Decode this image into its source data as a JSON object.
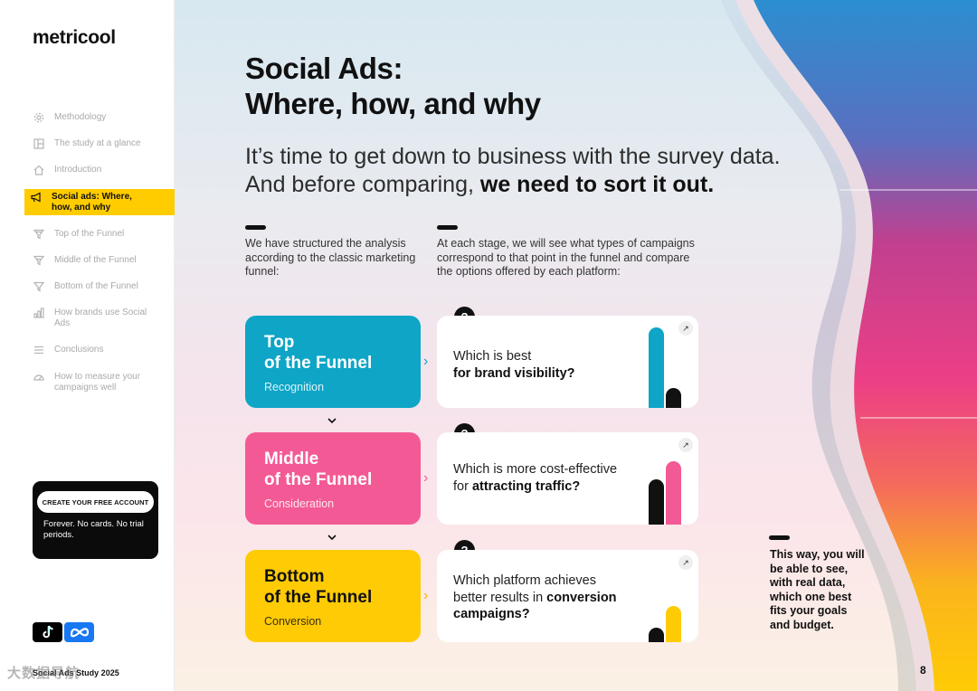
{
  "brand": {
    "logo": "metricool"
  },
  "sidebar": {
    "items": [
      {
        "label": "Methodology",
        "icon": "gear-icon"
      },
      {
        "label": "The study at a glance",
        "icon": "layout-icon"
      },
      {
        "label": "Introduction",
        "icon": "home-icon"
      },
      {
        "label": "Social ads: Where, how, and why",
        "icon": "megaphone-icon",
        "active": true
      },
      {
        "label": "Top of the Funnel",
        "icon": "funnel-icon"
      },
      {
        "label": "Middle of the Funnel",
        "icon": "funnel-icon"
      },
      {
        "label": "Bottom of the Funnel",
        "icon": "funnel-icon"
      },
      {
        "label": "How brands use Social Ads",
        "icon": "bar-chart-icon"
      },
      {
        "label": "Conclusions",
        "icon": "list-icon"
      },
      {
        "label": "How to measure your campaigns well",
        "icon": "gauge-icon"
      }
    ],
    "cta": {
      "button": "CREATE YOUR FREE ACCOUNT",
      "text": "Forever. No cards. No trial periods."
    },
    "platforms": [
      "tiktok-icon",
      "meta-icon"
    ],
    "footer": "Social Ads Study 2025"
  },
  "main": {
    "title_line1": "Social Ads:",
    "title_line2": "Where, how, and why",
    "subtitle_line1": "It’s time to get down to business with the survey data.",
    "subtitle_line2_plain": "And before comparing, ",
    "subtitle_line2_bold": "we need to sort it out.",
    "intro_left": "We have structured the analysis according to the classic marketing funnel:",
    "intro_right": "At each stage, we will see what types of campaigns correspond to that point in the funnel and compare the options offered by each platform:",
    "stages": [
      {
        "line1": "Top",
        "line2": "of the Funnel",
        "sub": "Recognition",
        "color": "#0ea5c6",
        "q_plain": "Which is best",
        "q_bold": "for brand visibility?",
        "q_tail": ""
      },
      {
        "line1": "Middle",
        "line2": "of the Funnel",
        "sub": "Consideration",
        "color": "#f35a95",
        "q_plain": "Which is more cost-effective",
        "q_plain2": "for ",
        "q_bold": "attracting traffic?"
      },
      {
        "line1": "Bottom",
        "line2": "of the Funnel",
        "sub": "Conversion",
        "color": "#ffcb05",
        "q_plain": "Which platform achieves",
        "q_plain2": "better results in ",
        "q_bold": "conversion",
        "q_bold2": "campaigns?"
      }
    ],
    "question_mark": "?",
    "closing": "This way, you will be able to see, with real data, which one best fits your goals and budget.",
    "page_number": "8"
  },
  "watermark": "大数据导航",
  "colors": {
    "accent": "#ffcc00",
    "top": "#0ea5c6",
    "middle": "#f35a95",
    "bottom": "#ffcb05",
    "dark": "#111111"
  }
}
